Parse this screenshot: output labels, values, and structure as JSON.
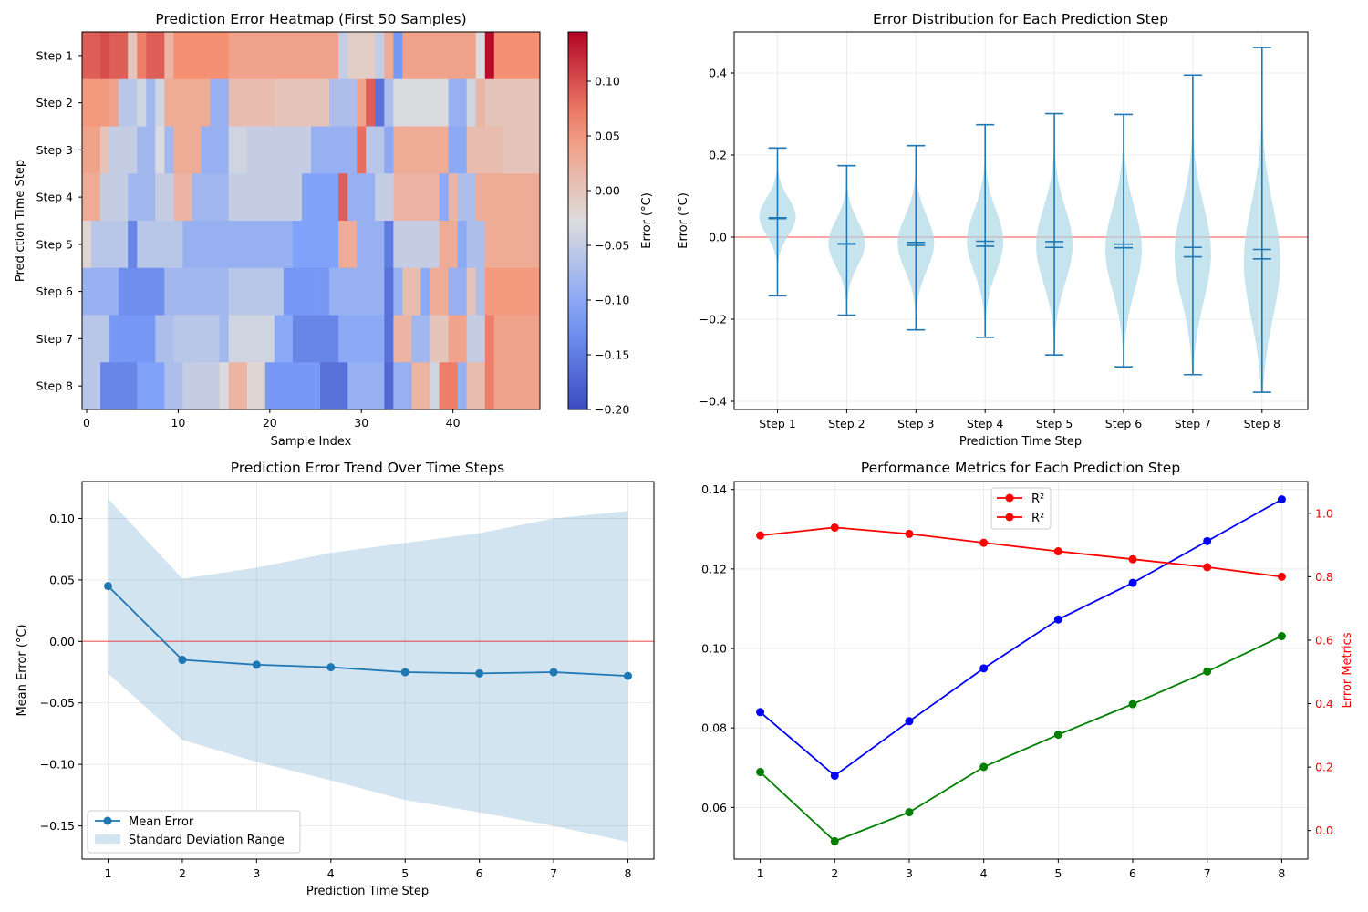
{
  "colors": {
    "mean": "#1f77b4",
    "band": "#1f77b4",
    "violin": "#add8e6",
    "ref": "#ff0000",
    "rmse": "#0000ff",
    "mae": "#008000",
    "r2": "#ff0000"
  },
  "chart_data": [
    {
      "type": "heatmap",
      "title": "Prediction Error Heatmap (First 50 Samples)",
      "xlabel": "Sample Index",
      "ylabel": "Prediction Time Step",
      "rows": [
        "Step 1",
        "Step 2",
        "Step 3",
        "Step 4",
        "Step 5",
        "Step 6",
        "Step 7",
        "Step 8"
      ],
      "x_ticks": [
        0,
        10,
        20,
        30,
        40
      ],
      "colorbar": {
        "label": "Error (°C)",
        "range": [
          -0.2,
          0.145
        ],
        "ticks": [
          -0.2,
          -0.15,
          -0.1,
          -0.05,
          0.0,
          0.05,
          0.1
        ],
        "colormap": "coolwarm"
      },
      "values": [
        [
          0.09,
          0.09,
          0.1,
          0.09,
          0.09,
          0.0,
          0.07,
          0.09,
          0.09,
          0.02,
          0.06,
          0.06,
          0.06,
          0.06,
          0.06,
          0.06,
          0.04,
          0.04,
          0.04,
          0.04,
          0.04,
          0.04,
          0.04,
          0.04,
          0.04,
          0.04,
          0.04,
          0.04,
          -0.05,
          -0.01,
          -0.01,
          -0.01,
          -0.05,
          0.03,
          -0.12,
          0.04,
          0.04,
          0.04,
          0.04,
          0.04,
          0.04,
          0.04,
          0.04,
          -0.03,
          0.14,
          0.06,
          0.06,
          0.06,
          0.06,
          0.06
        ],
        [
          0.05,
          0.05,
          0.05,
          0.04,
          -0.06,
          -0.06,
          -0.04,
          -0.08,
          -0.04,
          0.03,
          0.03,
          0.03,
          0.03,
          0.03,
          -0.09,
          -0.09,
          0.01,
          0.01,
          0.01,
          0.01,
          0.01,
          0.0,
          0.0,
          0.0,
          0.0,
          0.0,
          0.0,
          -0.07,
          -0.07,
          -0.07,
          0.04,
          0.09,
          -0.16,
          -0.07,
          -0.03,
          -0.03,
          -0.03,
          -0.03,
          -0.03,
          -0.03,
          -0.09,
          -0.09,
          -0.04,
          0.02,
          0.0,
          0.0,
          0.0,
          0.0,
          0.0,
          0.0
        ],
        [
          0.04,
          0.04,
          0.0,
          -0.05,
          -0.05,
          -0.05,
          -0.08,
          -0.08,
          -0.03,
          -0.08,
          0.03,
          0.03,
          0.03,
          -0.09,
          -0.09,
          -0.09,
          -0.04,
          -0.04,
          -0.05,
          -0.05,
          -0.05,
          -0.05,
          -0.05,
          -0.05,
          -0.05,
          -0.09,
          -0.09,
          -0.09,
          -0.09,
          -0.09,
          0.08,
          -0.06,
          -0.06,
          -0.1,
          0.03,
          0.03,
          0.03,
          0.03,
          0.03,
          0.03,
          -0.1,
          -0.1,
          0.01,
          0.01,
          0.01,
          0.01,
          0.0,
          0.0,
          0.0,
          0.0
        ],
        [
          0.03,
          0.03,
          -0.05,
          -0.05,
          -0.05,
          -0.08,
          -0.08,
          -0.08,
          -0.05,
          -0.05,
          0.02,
          0.02,
          -0.08,
          -0.08,
          -0.08,
          -0.08,
          -0.05,
          -0.05,
          -0.05,
          -0.05,
          -0.05,
          -0.05,
          -0.05,
          -0.05,
          -0.11,
          -0.11,
          -0.11,
          -0.11,
          0.09,
          -0.09,
          -0.09,
          -0.09,
          -0.05,
          -0.05,
          0.02,
          0.02,
          0.02,
          0.02,
          0.02,
          -0.1,
          0.02,
          -0.07,
          -0.07,
          0.03,
          0.03,
          0.03,
          0.03,
          0.03,
          0.03,
          0.03
        ],
        [
          -0.02,
          -0.06,
          -0.06,
          -0.06,
          -0.06,
          -0.14,
          -0.06,
          -0.06,
          -0.06,
          -0.06,
          -0.06,
          -0.09,
          -0.09,
          -0.09,
          -0.09,
          -0.09,
          -0.09,
          -0.09,
          -0.09,
          -0.09,
          -0.09,
          -0.09,
          -0.09,
          -0.11,
          -0.11,
          -0.11,
          -0.11,
          -0.11,
          0.03,
          0.03,
          -0.09,
          -0.09,
          -0.09,
          -0.15,
          -0.05,
          -0.05,
          -0.05,
          -0.05,
          -0.05,
          0.03,
          0.03,
          -0.1,
          -0.07,
          -0.07,
          0.03,
          0.03,
          0.03,
          0.03,
          0.03,
          0.03
        ],
        [
          -0.09,
          -0.09,
          -0.09,
          -0.09,
          -0.13,
          -0.13,
          -0.13,
          -0.13,
          -0.13,
          -0.08,
          -0.08,
          -0.08,
          -0.08,
          -0.08,
          -0.08,
          -0.08,
          -0.06,
          -0.06,
          -0.06,
          -0.06,
          -0.06,
          -0.06,
          -0.12,
          -0.12,
          -0.12,
          -0.12,
          -0.12,
          -0.09,
          -0.09,
          -0.09,
          -0.09,
          -0.09,
          -0.09,
          -0.16,
          -0.09,
          0.01,
          0.01,
          -0.1,
          0.03,
          0.03,
          -0.09,
          -0.09,
          0.0,
          -0.07,
          0.05,
          0.05,
          0.05,
          0.05,
          0.05,
          0.05
        ],
        [
          -0.06,
          -0.06,
          -0.06,
          -0.12,
          -0.12,
          -0.12,
          -0.12,
          -0.12,
          -0.07,
          -0.07,
          -0.06,
          -0.06,
          -0.06,
          -0.06,
          -0.06,
          -0.08,
          -0.04,
          -0.04,
          -0.04,
          -0.04,
          -0.04,
          -0.1,
          -0.1,
          -0.14,
          -0.14,
          -0.14,
          -0.14,
          -0.14,
          -0.1,
          -0.1,
          -0.1,
          -0.1,
          -0.1,
          -0.16,
          0.02,
          0.02,
          -0.08,
          -0.08,
          0.0,
          0.0,
          0.04,
          0.04,
          -0.05,
          -0.05,
          0.07,
          0.04,
          0.04,
          0.04,
          0.04,
          0.04
        ],
        [
          -0.06,
          -0.06,
          -0.14,
          -0.14,
          -0.14,
          -0.14,
          -0.11,
          -0.11,
          -0.11,
          -0.07,
          -0.07,
          -0.05,
          -0.05,
          -0.05,
          -0.05,
          -0.03,
          0.02,
          0.02,
          -0.02,
          -0.02,
          -0.12,
          -0.12,
          -0.12,
          -0.12,
          -0.12,
          -0.12,
          -0.16,
          -0.16,
          -0.16,
          -0.09,
          -0.09,
          -0.09,
          -0.09,
          -0.17,
          -0.09,
          -0.09,
          0.02,
          0.02,
          -0.04,
          0.07,
          0.07,
          -0.09,
          0.01,
          0.01,
          0.07,
          0.04,
          0.04,
          0.04,
          0.04,
          0.04
        ]
      ]
    },
    {
      "type": "violin",
      "title": "Error Distribution for Each Prediction Step",
      "xlabel": "Prediction Time Step",
      "ylabel": "Error (°C)",
      "categories": [
        "Step 1",
        "Step 2",
        "Step 3",
        "Step 4",
        "Step 5",
        "Step 6",
        "Step 7",
        "Step 8"
      ],
      "ylim": [
        -0.42,
        0.5
      ],
      "y_ticks": [
        -0.4,
        -0.2,
        0.0,
        0.2,
        0.4
      ],
      "reference_line": 0,
      "min": [
        -0.143,
        -0.19,
        -0.226,
        -0.244,
        -0.287,
        -0.316,
        -0.335,
        -0.378
      ],
      "max": [
        0.217,
        0.174,
        0.223,
        0.274,
        0.301,
        0.299,
        0.395,
        0.462
      ],
      "mean": [
        0.045,
        -0.016,
        -0.02,
        -0.022,
        -0.025,
        -0.026,
        -0.025,
        -0.03
      ],
      "median": [
        0.047,
        -0.017,
        -0.013,
        -0.01,
        -0.011,
        -0.017,
        -0.048,
        -0.053
      ],
      "center": [
        0.05,
        -0.015,
        -0.015,
        -0.01,
        -0.02,
        -0.03,
        -0.04,
        -0.06
      ],
      "spread": [
        0.045,
        0.055,
        0.065,
        0.075,
        0.09,
        0.1,
        0.115,
        0.135
      ]
    },
    {
      "type": "line",
      "title": "Prediction Error Trend Over Time Steps",
      "xlabel": "Prediction Time Step",
      "ylabel": "Mean Error (°C)",
      "x": [
        1,
        2,
        3,
        4,
        5,
        6,
        7,
        8
      ],
      "xlim": [
        0.65,
        8.35
      ],
      "ylim": [
        -0.177,
        0.13
      ],
      "y_ticks": [
        -0.15,
        -0.1,
        -0.05,
        0.0,
        0.05,
        0.1
      ],
      "reference_line": 0,
      "legend": "lower-left",
      "series": [
        {
          "name": "Mean Error",
          "values": [
            0.045,
            -0.015,
            -0.019,
            -0.021,
            -0.025,
            -0.026,
            -0.025,
            -0.028
          ]
        },
        {
          "name": "Standard Deviation Range",
          "upper": [
            0.116,
            0.051,
            0.06,
            0.072,
            0.08,
            0.088,
            0.1,
            0.106
          ],
          "lower": [
            -0.026,
            -0.08,
            -0.098,
            -0.113,
            -0.129,
            -0.139,
            -0.15,
            -0.163
          ]
        }
      ]
    },
    {
      "type": "line",
      "title": "Performance Metrics for Each Prediction Step",
      "x": [
        1,
        2,
        3,
        4,
        5,
        6,
        7,
        8
      ],
      "xlim": [
        0.65,
        8.35
      ],
      "ylim_left": [
        0.047,
        0.142
      ],
      "left_ticks": [
        0.06,
        0.08,
        0.1,
        0.12,
        0.14
      ],
      "ylabel_right": "Error Metrics",
      "ylim_right": [
        -0.09,
        1.1
      ],
      "right_ticks": [
        0.0,
        0.2,
        0.4,
        0.6,
        0.8,
        1.0
      ],
      "legend": "upper-center",
      "legend_entries": [
        "R²",
        "R²"
      ],
      "series": [
        {
          "axis": "left",
          "color": "#0000ff",
          "values": [
            0.084,
            0.068,
            0.0817,
            0.095,
            0.1073,
            0.1165,
            0.127,
            0.1375
          ]
        },
        {
          "axis": "left",
          "color": "#008000",
          "values": [
            0.0689,
            0.0515,
            0.0588,
            0.0702,
            0.0783,
            0.086,
            0.0942,
            0.1031
          ]
        },
        {
          "axis": "right",
          "color": "#ff0000",
          "values": [
            0.93,
            0.955,
            0.935,
            0.907,
            0.88,
            0.855,
            0.83,
            0.8
          ]
        }
      ]
    }
  ]
}
